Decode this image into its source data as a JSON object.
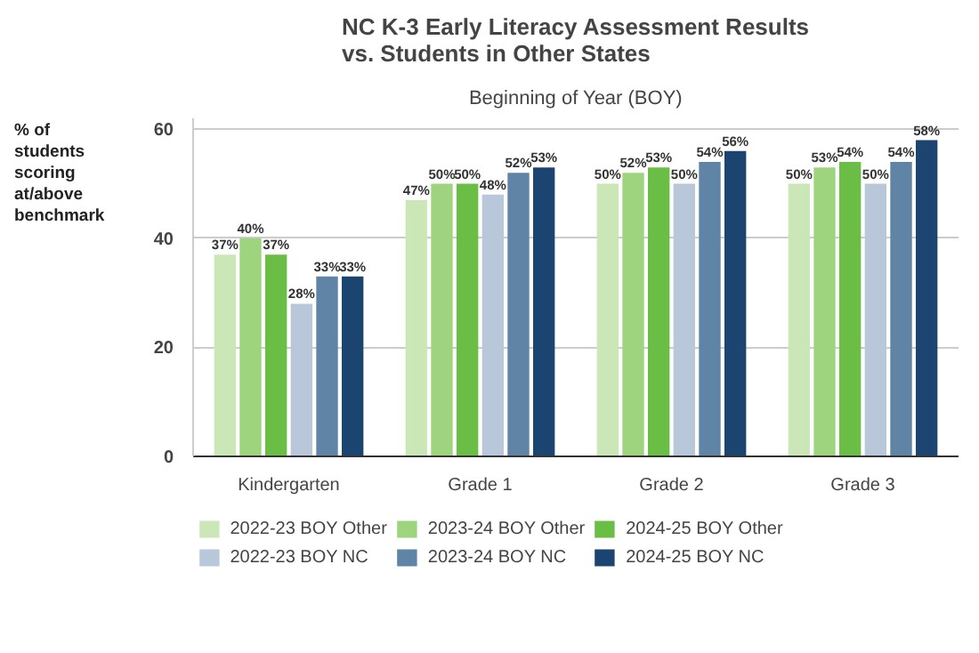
{
  "chart_data": {
    "type": "bar",
    "title": "NC K-3 Early Literacy Assessment Results vs. Students in Other States",
    "subtitle": "Beginning of Year (BOY)",
    "ylabel": "% of students scoring at/above benchmark",
    "categories": [
      "Kindergarten",
      "Grade 1",
      "Grade 2",
      "Grade 3"
    ],
    "series": [
      {
        "name": "2022-23 BOY Other",
        "color": "#cbe7b8",
        "values": [
          37,
          47,
          50,
          50
        ],
        "value_labels": [
          "37%",
          "47%",
          "50%",
          "50%"
        ]
      },
      {
        "name": "2023-24 BOY Other",
        "color": "#9fd47e",
        "values": [
          40,
          50,
          52,
          53
        ],
        "value_labels": [
          "40%",
          "50%",
          "52%",
          "53%"
        ]
      },
      {
        "name": "2024-25 BOY Other",
        "color": "#6abd45",
        "values": [
          37,
          50,
          53,
          54
        ],
        "value_labels": [
          "37%",
          "50%",
          "53%",
          "54%"
        ]
      },
      {
        "name": "2022-23 BOY NC",
        "color": "#b8c8da",
        "values": [
          28,
          48,
          50,
          50
        ],
        "value_labels": [
          "28%",
          "48%",
          "50%",
          "50%"
        ]
      },
      {
        "name": "2023-24 BOY NC",
        "color": "#5f84a6",
        "values": [
          33,
          52,
          54,
          54
        ],
        "value_labels": [
          "33%",
          "52%",
          "54%",
          "54%"
        ]
      },
      {
        "name": "2024-25 BOY NC",
        "color": "#1c4471",
        "values": [
          33,
          53,
          56,
          58
        ],
        "value_labels": [
          "33%",
          "53%",
          "56%",
          "58%"
        ]
      }
    ],
    "ylim": [
      0,
      62
    ],
    "yticks": [
      0,
      20,
      40,
      60
    ],
    "grid": "y",
    "legend": "bottom"
  }
}
